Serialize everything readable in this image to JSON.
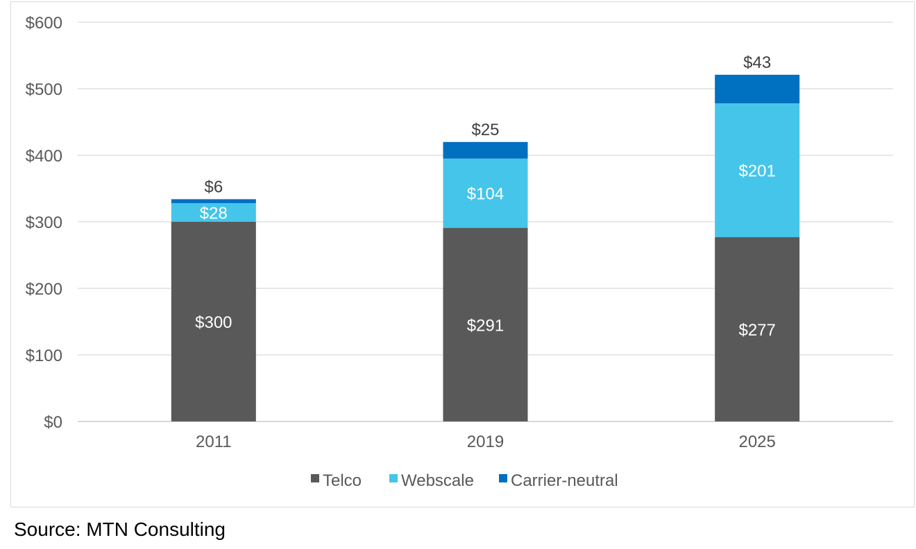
{
  "chart_data": {
    "type": "bar",
    "stacked": true,
    "categories": [
      "2011",
      "2019",
      "2025"
    ],
    "series": [
      {
        "name": "Telco",
        "values": [
          300,
          291,
          277
        ],
        "labels": [
          "$300",
          "$291",
          "$277"
        ],
        "color": "#595959",
        "label_color": "#ffffff"
      },
      {
        "name": "Webscale",
        "values": [
          28,
          104,
          201
        ],
        "labels": [
          "$28",
          "$104",
          "$201"
        ],
        "color": "#45c5ea",
        "label_color": "#ffffff"
      },
      {
        "name": "Carrier-neutral",
        "values": [
          6,
          25,
          43
        ],
        "labels": [
          "$6",
          "$25",
          "$43"
        ],
        "color": "#0070c0",
        "label_color": "#404040",
        "label_position": "above"
      }
    ],
    "ylim": [
      0,
      600
    ],
    "yticks": [
      0,
      100,
      200,
      300,
      400,
      500,
      600
    ],
    "ytick_labels": [
      "$0",
      "$100",
      "$200",
      "$300",
      "$400",
      "$500",
      "$600"
    ],
    "grid": true,
    "legend_position": "bottom"
  },
  "source": "Source: MTN Consulting"
}
